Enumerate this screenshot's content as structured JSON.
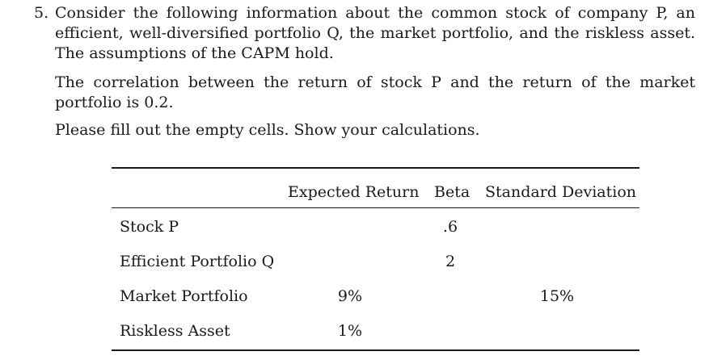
{
  "question": {
    "number": "5.",
    "paragraph_1": "Consider the following information about the common stock of company P, an efficient, well-diversified portfolio Q, the market portfolio, and the riskless asset. The assumptions of the CAPM hold.",
    "paragraph_2": "The correlation between the return of stock P and the return of the market portfolio is 0.2.",
    "paragraph_3": "Please fill out the empty cells. Show your calculations."
  },
  "table": {
    "headers": {
      "expected_return": "Expected Return",
      "beta": "Beta",
      "std_dev": "Standard Deviation"
    },
    "rows": [
      {
        "label": "Stock P",
        "expected_return": "",
        "beta": ".6",
        "std_dev": ""
      },
      {
        "label": "Efficient Portfolio Q",
        "expected_return": "",
        "beta": "2",
        "std_dev": ""
      },
      {
        "label": "Market Portfolio",
        "expected_return": "9%",
        "beta": "",
        "std_dev": "15%"
      },
      {
        "label": "Riskless Asset",
        "expected_return": "1%",
        "beta": "",
        "std_dev": ""
      }
    ]
  }
}
